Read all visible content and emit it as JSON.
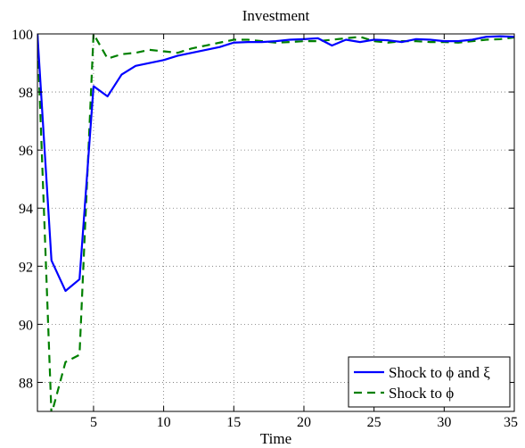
{
  "chart_data": {
    "type": "line",
    "title": "Investment",
    "xlabel": "Time",
    "ylabel": "",
    "xlim": [
      1,
      35
    ],
    "ylim": [
      87,
      100
    ],
    "xticks": [
      5,
      10,
      15,
      20,
      25,
      30,
      35
    ],
    "yticks": [
      88,
      90,
      92,
      94,
      96,
      98,
      100
    ],
    "grid": true,
    "legend_position": "bottom-right",
    "x": [
      1,
      2,
      3,
      4,
      5,
      6,
      7,
      8,
      9,
      10,
      11,
      12,
      13,
      14,
      15,
      16,
      17,
      18,
      19,
      20,
      21,
      22,
      23,
      24,
      25,
      26,
      27,
      28,
      29,
      30,
      31,
      32,
      33,
      34,
      35
    ],
    "series": [
      {
        "name": "Shock to ϕ and ξ",
        "color": "#0000ff",
        "dash": "solid",
        "values": [
          100,
          92.2,
          91.15,
          91.55,
          98.2,
          97.85,
          98.6,
          98.9,
          99.0,
          99.1,
          99.25,
          99.35,
          99.45,
          99.55,
          99.7,
          99.72,
          99.72,
          99.75,
          99.8,
          99.82,
          99.85,
          99.6,
          99.8,
          99.72,
          99.8,
          99.78,
          99.72,
          99.82,
          99.8,
          99.75,
          99.75,
          99.8,
          99.9,
          99.92,
          99.9
        ]
      },
      {
        "name": "Shock to ϕ",
        "color": "#008000",
        "dash": "dashed",
        "values": [
          100,
          86.9,
          88.7,
          88.95,
          100.0,
          99.15,
          99.3,
          99.35,
          99.45,
          99.4,
          99.35,
          99.5,
          99.6,
          99.7,
          99.8,
          99.8,
          99.75,
          99.7,
          99.72,
          99.75,
          99.75,
          99.8,
          99.85,
          99.9,
          99.75,
          99.7,
          99.75,
          99.75,
          99.72,
          99.72,
          99.7,
          99.75,
          99.8,
          99.82,
          99.88
        ]
      }
    ]
  }
}
